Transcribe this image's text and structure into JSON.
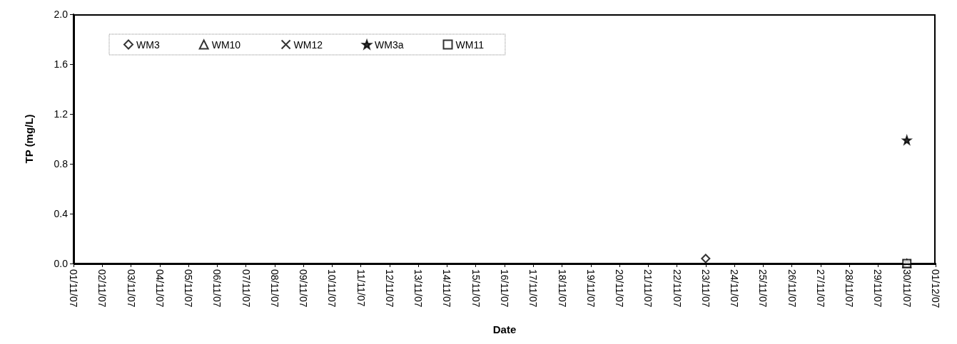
{
  "chart_data": {
    "type": "scatter",
    "xlabel": "Date",
    "ylabel": "TP (mg/L)",
    "xlim": [
      "--11-01",
      "--12-01"
    ],
    "xticks": [
      {
        "value": "--11-01",
        "label": "01/11/07"
      },
      {
        "value": "--11-02",
        "label": "02/11/07"
      },
      {
        "value": "--11-03",
        "label": "03/11/07"
      },
      {
        "value": "--11-04",
        "label": "04/11/07"
      },
      {
        "value": "--11-05",
        "label": "05/11/07"
      },
      {
        "value": "--11-06",
        "label": "06/11/07"
      },
      {
        "value": "--11-07",
        "label": "07/11/07"
      },
      {
        "value": "--11-08",
        "label": "08/11/07"
      },
      {
        "value": "--11-09",
        "label": "09/11/07"
      },
      {
        "value": "--11-10",
        "label": "10/11/07"
      },
      {
        "value": "--11-11",
        "label": "11/11/07"
      },
      {
        "value": "--11-12",
        "label": "12/11/07"
      },
      {
        "value": "--11-13",
        "label": "13/11/07"
      },
      {
        "value": "--11-14",
        "label": "14/11/07"
      },
      {
        "value": "--11-15",
        "label": "15/11/07"
      },
      {
        "value": "--11-16",
        "label": "16/11/07"
      },
      {
        "value": "--11-17",
        "label": "17/11/07"
      },
      {
        "value": "--11-18",
        "label": "18/11/07"
      },
      {
        "value": "--11-19",
        "label": "19/11/07"
      },
      {
        "value": "--11-20",
        "label": "20/11/07"
      },
      {
        "value": "--11-21",
        "label": "21/11/07"
      },
      {
        "value": "--11-22",
        "label": "22/11/07"
      },
      {
        "value": "--11-23",
        "label": "23/11/07"
      },
      {
        "value": "--11-24",
        "label": "24/11/07"
      },
      {
        "value": "--11-25",
        "label": "25/11/07"
      },
      {
        "value": "--11-26",
        "label": "26/11/07"
      },
      {
        "value": "--11-27",
        "label": "27/11/07"
      },
      {
        "value": "--11-28",
        "label": "28/11/07"
      },
      {
        "value": "--11-29",
        "label": "29/11/07"
      },
      {
        "value": "--11-30",
        "label": "30/11/07"
      },
      {
        "value": "--12-01",
        "label": "01/12/07"
      }
    ],
    "ylim": [
      0,
      2
    ],
    "yticks": [
      {
        "value": 0,
        "label": "0.0"
      },
      {
        "value": 0.4,
        "label": "0.4"
      },
      {
        "value": 0.8,
        "label": "0.8"
      },
      {
        "value": 1.2,
        "label": "1.2"
      },
      {
        "value": 1.6,
        "label": "1.6"
      },
      {
        "value": 2,
        "label": "2.0"
      }
    ],
    "grid": false,
    "legend": "top left",
    "series": [
      {
        "name": "WM3",
        "color": "#000000",
        "marker": "diamond",
        "x": [
          "--11-23"
        ],
        "values": [
          0.04
        ]
      },
      {
        "name": "WM10",
        "color": "#000000",
        "marker": "triangle",
        "x": [
          "--11-30"
        ],
        "values": [
          0
        ]
      },
      {
        "name": "WM12",
        "color": "#000000",
        "marker": "cross",
        "x": [
          "--11-30"
        ],
        "values": [
          0
        ]
      },
      {
        "name": "WM3a",
        "color": "#000000",
        "marker": "star",
        "x": [
          "--11-30"
        ],
        "values": [
          0.99
        ]
      },
      {
        "name": "WM11",
        "color": "#000000",
        "marker": "square",
        "x": [
          "--11-30"
        ],
        "values": [
          0
        ]
      }
    ]
  }
}
